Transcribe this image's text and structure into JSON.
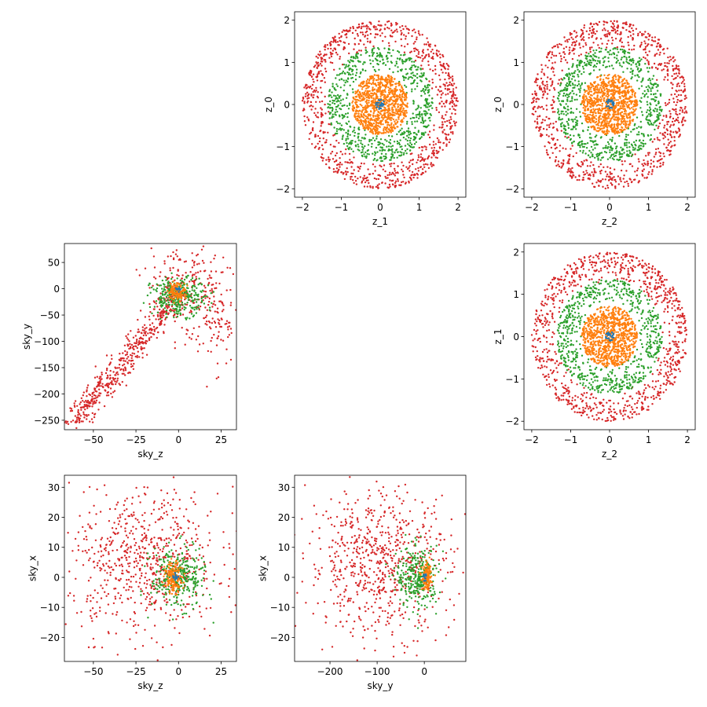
{
  "figure": {
    "point_size_note": "small circular markers",
    "colors": {
      "blue": "#1f77b4",
      "orange": "#ff7f0e",
      "green": "#2ca02c",
      "red": "#d62728"
    }
  },
  "chart_data": [
    {
      "type": "scatter",
      "xlabel": "z_1",
      "ylabel": "z_0",
      "xlim": [
        -2.2,
        2.2
      ],
      "ylim": [
        -2.2,
        2.2
      ],
      "xticks": [
        -2,
        -1,
        0,
        1,
        2
      ],
      "yticks": [
        -2,
        -1,
        0,
        1,
        2
      ],
      "grid": false,
      "series": [
        {
          "color": "#d62728",
          "shape": "ring",
          "r_inner": 1.3,
          "r_outer": 2.0,
          "n": 900
        },
        {
          "color": "#2ca02c",
          "shape": "ring",
          "r_inner": 0.7,
          "r_outer": 1.35,
          "n": 700
        },
        {
          "color": "#ff7f0e",
          "shape": "ring",
          "r_inner": 0.0,
          "r_outer": 0.72,
          "n": 900
        },
        {
          "color": "#1f77b4",
          "shape": "ring",
          "r_inner": 0.0,
          "r_outer": 0.12,
          "n": 25
        }
      ]
    },
    {
      "type": "scatter",
      "xlabel": "z_2",
      "ylabel": "z_0",
      "xlim": [
        -2.2,
        2.2
      ],
      "ylim": [
        -2.2,
        2.2
      ],
      "xticks": [
        -2,
        -1,
        0,
        1,
        2
      ],
      "yticks": [
        -2,
        -1,
        0,
        1,
        2
      ],
      "grid": false,
      "series": [
        {
          "color": "#d62728",
          "shape": "ring",
          "r_inner": 1.3,
          "r_outer": 2.0,
          "n": 900
        },
        {
          "color": "#2ca02c",
          "shape": "ring",
          "r_inner": 0.7,
          "r_outer": 1.35,
          "n": 700
        },
        {
          "color": "#ff7f0e",
          "shape": "ring",
          "r_inner": 0.0,
          "r_outer": 0.72,
          "n": 900
        },
        {
          "color": "#1f77b4",
          "shape": "ring",
          "r_inner": 0.0,
          "r_outer": 0.12,
          "n": 25
        }
      ]
    },
    {
      "type": "scatter",
      "xlabel": "sky_z",
      "ylabel": "sky_y",
      "xlim": [
        -67,
        34
      ],
      "ylim": [
        -268,
        86
      ],
      "xticks": [
        -50,
        -25,
        0,
        25
      ],
      "yticks": [
        -250,
        -200,
        -150,
        -100,
        -50,
        0,
        50
      ],
      "grid": false,
      "series": [
        {
          "color": "#d62728",
          "shape": "band",
          "from": [
            -62,
            -255
          ],
          "to": [
            0,
            -10
          ],
          "width": 9,
          "n": 500
        },
        {
          "color": "#d62728",
          "shape": "blob",
          "center": [
            5,
            10
          ],
          "spread": [
            12,
            35
          ],
          "n": 180
        },
        {
          "color": "#d62728",
          "shape": "band",
          "from": [
            -30,
            -140
          ],
          "to": [
            20,
            -100
          ],
          "width": 6,
          "n": 0
        },
        {
          "color": "#d62728",
          "shape": "blob",
          "center": [
            20,
            -60
          ],
          "spread": [
            8,
            45
          ],
          "n": 120
        },
        {
          "color": "#2ca02c",
          "shape": "blob",
          "center": [
            0,
            -15
          ],
          "spread": [
            8,
            18
          ],
          "n": 300
        },
        {
          "color": "#ff7f0e",
          "shape": "blob",
          "center": [
            -1,
            -5
          ],
          "spread": [
            2.5,
            8
          ],
          "n": 120
        },
        {
          "color": "#1f77b4",
          "shape": "blob",
          "center": [
            0,
            0
          ],
          "spread": [
            0.8,
            2
          ],
          "n": 15
        }
      ]
    },
    {
      "type": "scatter",
      "xlabel": "z_2",
      "ylabel": "z_1",
      "xlim": [
        -2.2,
        2.2
      ],
      "ylim": [
        -2.2,
        2.2
      ],
      "xticks": [
        -2,
        -1,
        0,
        1,
        2
      ],
      "yticks": [
        -2,
        -1,
        0,
        1,
        2
      ],
      "grid": false,
      "series": [
        {
          "color": "#d62728",
          "shape": "ring",
          "r_inner": 1.3,
          "r_outer": 2.0,
          "n": 900
        },
        {
          "color": "#2ca02c",
          "shape": "ring",
          "r_inner": 0.7,
          "r_outer": 1.35,
          "n": 700
        },
        {
          "color": "#ff7f0e",
          "shape": "ring",
          "r_inner": 0.0,
          "r_outer": 0.72,
          "n": 900
        },
        {
          "color": "#1f77b4",
          "shape": "ring",
          "r_inner": 0.0,
          "r_outer": 0.12,
          "n": 25
        }
      ]
    },
    {
      "type": "scatter",
      "xlabel": "sky_z",
      "ylabel": "sky_x",
      "xlim": [
        -67,
        34
      ],
      "ylim": [
        -28,
        34
      ],
      "xticks": [
        -50,
        -25,
        0,
        25
      ],
      "yticks": [
        -20,
        -10,
        0,
        10,
        20,
        30
      ],
      "grid": false,
      "series": [
        {
          "color": "#d62728",
          "shape": "blob",
          "center": [
            -20,
            5
          ],
          "spread": [
            22,
            12
          ],
          "n": 700
        },
        {
          "color": "#2ca02c",
          "shape": "blob",
          "center": [
            0,
            0
          ],
          "spread": [
            8,
            5
          ],
          "n": 300
        },
        {
          "color": "#ff7f0e",
          "shape": "blob",
          "center": [
            -3,
            0
          ],
          "spread": [
            2.5,
            2.5
          ],
          "n": 150
        },
        {
          "color": "#1f77b4",
          "shape": "blob",
          "center": [
            -2,
            0
          ],
          "spread": [
            0.8,
            0.8
          ],
          "n": 15
        }
      ]
    },
    {
      "type": "scatter",
      "xlabel": "sky_y",
      "ylabel": "sky_x",
      "xlim": [
        -275,
        88
      ],
      "ylim": [
        -28,
        34
      ],
      "xticks": [
        -200,
        -100,
        0
      ],
      "yticks": [
        -20,
        -10,
        0,
        10,
        20,
        30
      ],
      "grid": false,
      "series": [
        {
          "color": "#d62728",
          "shape": "blob",
          "center": [
            -95,
            5
          ],
          "spread": [
            75,
            12
          ],
          "n": 700
        },
        {
          "color": "#2ca02c",
          "shape": "blob",
          "center": [
            -15,
            0
          ],
          "spread": [
            22,
            5
          ],
          "n": 300
        },
        {
          "color": "#ff7f0e",
          "shape": "blob",
          "center": [
            5,
            0
          ],
          "spread": [
            5,
            2
          ],
          "n": 150
        },
        {
          "color": "#1f77b4",
          "shape": "blob",
          "center": [
            2,
            0
          ],
          "spread": [
            2,
            0.8
          ],
          "n": 15
        }
      ]
    }
  ]
}
